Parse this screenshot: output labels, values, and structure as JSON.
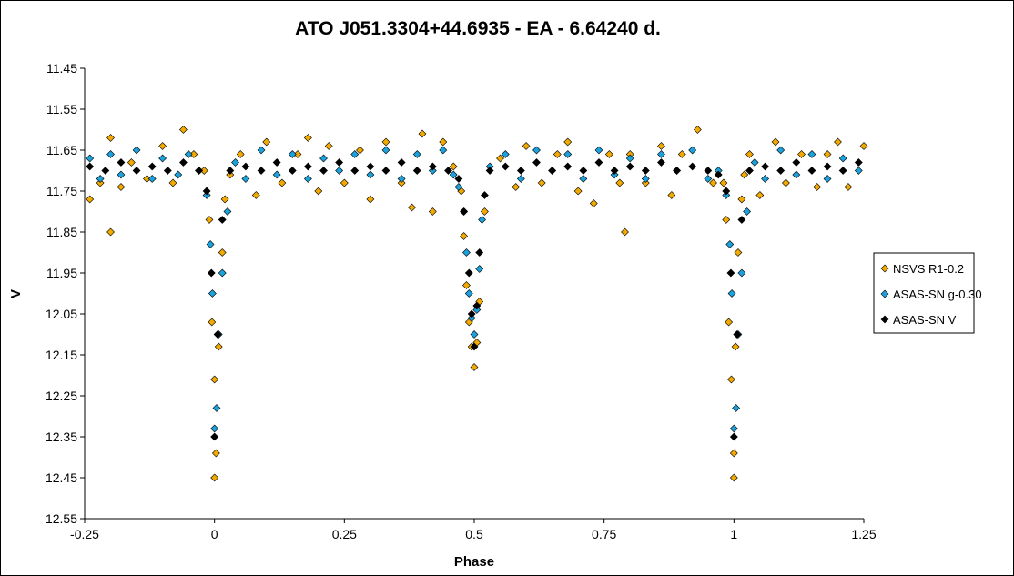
{
  "chart_data": {
    "type": "scatter",
    "title": "ATO J051.3304+44.6935  - EA - 6.64240 d.",
    "xlabel": "Phase",
    "ylabel": "V",
    "xlim": [
      -0.25,
      1.25
    ],
    "ylim": [
      11.45,
      12.55
    ],
    "y_inverted": true,
    "x_ticks": [
      -0.25,
      0,
      0.25,
      0.5,
      0.75,
      1,
      1.25
    ],
    "x_tick_labels": [
      "-0.25",
      "0",
      "0.25",
      "0.5",
      "0.75",
      "1",
      "1.25"
    ],
    "y_ticks": [
      11.45,
      11.55,
      11.65,
      11.75,
      11.85,
      11.95,
      12.05,
      12.15,
      12.25,
      12.35,
      12.45,
      12.55
    ],
    "y_tick_labels": [
      "11.45",
      "11.55",
      "11.65",
      "11.75",
      "11.85",
      "11.95",
      "12.05",
      "12.15",
      "12.25",
      "12.35",
      "12.45",
      "12.55"
    ],
    "grid": false,
    "legend_position": "right",
    "marker": "diamond",
    "series": [
      {
        "name": "NSVS R1-0.2",
        "color": "#F2A900",
        "x": [
          -0.24,
          -0.22,
          -0.2,
          -0.2,
          -0.18,
          -0.16,
          -0.13,
          -0.1,
          -0.08,
          -0.06,
          -0.04,
          -0.02,
          -0.01,
          -0.005,
          0.0,
          0.0,
          0.003,
          0.008,
          0.015,
          0.02,
          0.03,
          0.05,
          0.08,
          0.1,
          0.13,
          0.16,
          0.18,
          0.2,
          0.22,
          0.25,
          0.28,
          0.3,
          0.33,
          0.36,
          0.38,
          0.4,
          0.42,
          0.44,
          0.46,
          0.475,
          0.48,
          0.485,
          0.49,
          0.495,
          0.5,
          0.505,
          0.51,
          0.52,
          0.55,
          0.58,
          0.6,
          0.63,
          0.66,
          0.68,
          0.7,
          0.73,
          0.76,
          0.78,
          0.79,
          0.8,
          0.83,
          0.86,
          0.88,
          0.9,
          0.93,
          0.96,
          0.98,
          0.985,
          0.99,
          0.995,
          1.0,
          1.0,
          1.003,
          1.008,
          1.015,
          1.02,
          1.03,
          1.05,
          1.08,
          1.1,
          1.13,
          1.16,
          1.18,
          1.2,
          1.22,
          1.25
        ],
        "y": [
          11.77,
          11.73,
          11.62,
          11.85,
          11.74,
          11.68,
          11.72,
          11.64,
          11.73,
          11.6,
          11.66,
          11.7,
          11.82,
          12.07,
          12.21,
          12.45,
          12.39,
          12.13,
          11.9,
          11.77,
          11.71,
          11.66,
          11.76,
          11.63,
          11.73,
          11.66,
          11.62,
          11.75,
          11.64,
          11.73,
          11.65,
          11.77,
          11.63,
          11.73,
          11.79,
          11.61,
          11.8,
          11.63,
          11.69,
          11.75,
          11.86,
          11.98,
          12.07,
          12.13,
          12.18,
          12.12,
          12.02,
          11.8,
          11.67,
          11.74,
          11.64,
          11.73,
          11.66,
          11.63,
          11.75,
          11.78,
          11.66,
          11.73,
          11.85,
          11.66,
          11.73,
          11.64,
          11.76,
          11.66,
          11.6,
          11.73,
          11.73,
          11.82,
          12.07,
          12.21,
          12.45,
          12.39,
          12.13,
          11.9,
          11.77,
          11.71,
          11.66,
          11.76,
          11.63,
          11.73,
          11.66,
          11.74,
          11.66,
          11.63,
          11.74,
          11.64
        ]
      },
      {
        "name": "ASAS-SN g-0.30",
        "color": "#1BA1DB",
        "x": [
          -0.24,
          -0.22,
          -0.2,
          -0.18,
          -0.15,
          -0.12,
          -0.1,
          -0.07,
          -0.05,
          -0.03,
          -0.015,
          -0.008,
          -0.004,
          0.0,
          0.004,
          0.008,
          0.015,
          0.025,
          0.04,
          0.06,
          0.09,
          0.12,
          0.15,
          0.18,
          0.21,
          0.24,
          0.27,
          0.3,
          0.33,
          0.36,
          0.39,
          0.42,
          0.44,
          0.46,
          0.47,
          0.48,
          0.485,
          0.49,
          0.495,
          0.5,
          0.505,
          0.51,
          0.515,
          0.53,
          0.56,
          0.59,
          0.62,
          0.65,
          0.68,
          0.71,
          0.74,
          0.77,
          0.8,
          0.83,
          0.86,
          0.89,
          0.92,
          0.95,
          0.97,
          0.985,
          0.992,
          0.996,
          1.0,
          1.004,
          1.008,
          1.015,
          1.025,
          1.04,
          1.06,
          1.09,
          1.12,
          1.15,
          1.18,
          1.21,
          1.24
        ],
        "y": [
          11.67,
          11.72,
          11.66,
          11.71,
          11.65,
          11.72,
          11.67,
          11.71,
          11.66,
          11.7,
          11.76,
          11.88,
          12.0,
          12.33,
          12.28,
          12.1,
          11.95,
          11.8,
          11.68,
          11.72,
          11.65,
          11.71,
          11.66,
          11.72,
          11.67,
          11.7,
          11.66,
          11.71,
          11.65,
          11.72,
          11.66,
          11.7,
          11.65,
          11.71,
          11.74,
          11.8,
          11.9,
          12.0,
          12.06,
          12.1,
          12.04,
          11.94,
          11.82,
          11.69,
          11.66,
          11.72,
          11.65,
          11.7,
          11.66,
          11.72,
          11.65,
          11.71,
          11.67,
          11.72,
          11.66,
          11.7,
          11.65,
          11.72,
          11.7,
          11.76,
          11.88,
          12.0,
          12.33,
          12.28,
          12.1,
          11.95,
          11.8,
          11.68,
          11.72,
          11.65,
          11.71,
          11.66,
          11.72,
          11.67,
          11.7
        ]
      },
      {
        "name": "ASAS-SN V",
        "color": "#000000",
        "x": [
          -0.24,
          -0.21,
          -0.18,
          -0.15,
          -0.12,
          -0.09,
          -0.06,
          -0.03,
          -0.015,
          -0.006,
          0.0,
          0.006,
          0.015,
          0.03,
          0.06,
          0.09,
          0.12,
          0.15,
          0.18,
          0.21,
          0.24,
          0.27,
          0.3,
          0.33,
          0.36,
          0.39,
          0.42,
          0.45,
          0.47,
          0.48,
          0.49,
          0.495,
          0.5,
          0.505,
          0.51,
          0.52,
          0.53,
          0.56,
          0.59,
          0.62,
          0.65,
          0.68,
          0.71,
          0.74,
          0.77,
          0.8,
          0.83,
          0.86,
          0.89,
          0.92,
          0.95,
          0.97,
          0.985,
          0.994,
          1.0,
          1.006,
          1.015,
          1.03,
          1.06,
          1.09,
          1.12,
          1.15,
          1.18,
          1.21,
          1.24
        ],
        "y": [
          11.69,
          11.7,
          11.68,
          11.7,
          11.69,
          11.7,
          11.68,
          11.7,
          11.75,
          11.95,
          12.35,
          12.1,
          11.82,
          11.7,
          11.69,
          11.7,
          11.68,
          11.7,
          11.69,
          11.7,
          11.68,
          11.7,
          11.69,
          11.7,
          11.68,
          11.7,
          11.69,
          11.7,
          11.72,
          11.8,
          11.95,
          12.05,
          12.13,
          12.03,
          11.9,
          11.76,
          11.7,
          11.69,
          11.7,
          11.68,
          11.7,
          11.69,
          11.7,
          11.68,
          11.7,
          11.69,
          11.7,
          11.68,
          11.7,
          11.69,
          11.7,
          11.71,
          11.75,
          11.95,
          12.35,
          12.1,
          11.82,
          11.7,
          11.69,
          11.7,
          11.68,
          11.7,
          11.69,
          11.7,
          11.68
        ]
      }
    ]
  }
}
